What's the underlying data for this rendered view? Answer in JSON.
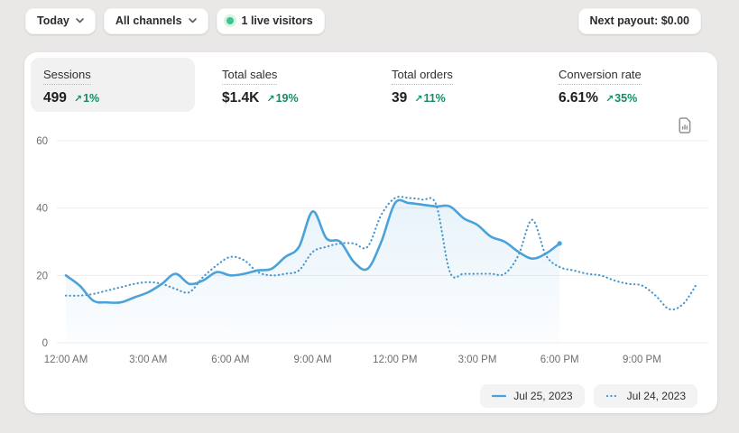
{
  "topbar": {
    "date_filter_label": "Today",
    "channel_filter_label": "All channels",
    "live_visitors_label": "1 live visitors",
    "next_payout_label": "Next payout: $0.00"
  },
  "metrics": [
    {
      "label": "Sessions",
      "value": "499",
      "delta": "1%",
      "selected": true
    },
    {
      "label": "Total sales",
      "value": "$1.4K",
      "delta": "19%",
      "selected": false
    },
    {
      "label": "Total orders",
      "value": "39",
      "delta": "11%",
      "selected": false
    },
    {
      "label": "Conversion rate",
      "value": "6.61%",
      "delta": "35%",
      "selected": false
    }
  ],
  "icons": {
    "trend_up": "↗",
    "chevron_down": "chevron-down",
    "live_dot": "green-pulse-dot",
    "export": "document-chart"
  },
  "colors": {
    "solid_line_blue": "#4aa2da",
    "dotted_line_blue": "#4596cd",
    "area_fill_blue": "#4aa2da",
    "success_green": "#178a66",
    "live_dot_green": "#3cc48e",
    "gridline": "#ebebeb",
    "axis_text": "#6e6e6e"
  },
  "chart_data": {
    "type": "line",
    "title": "Sessions",
    "xlabel": "",
    "ylabel": "",
    "ylim": [
      0,
      60
    ],
    "grid": "horizontal",
    "legend_position": "bottom-right",
    "y_ticks": [
      0,
      20,
      40,
      60
    ],
    "x_ticks": [
      "12:00 AM",
      "3:00 AM",
      "6:00 AM",
      "9:00 AM",
      "12:00 PM",
      "3:00 PM",
      "6:00 PM",
      "9:00 PM"
    ],
    "x_tick_hours": [
      0,
      3,
      6,
      9,
      12,
      15,
      18,
      21
    ],
    "series": [
      {
        "name": "Jul 25, 2023",
        "style": "solid",
        "color": "#4aa2da",
        "area_fill": true,
        "end_dot": true,
        "start_hour": 0,
        "hour_step": 0.5,
        "values": [
          20,
          17,
          12.5,
          12,
          12,
          13.5,
          15,
          17.5,
          20.5,
          17.5,
          18.5,
          21,
          20,
          20.5,
          21.5,
          22,
          25.5,
          28.5,
          39,
          31,
          30,
          24,
          22,
          30,
          41.5,
          41.5,
          41,
          40.5,
          40.5,
          37,
          35,
          31.5,
          30,
          27,
          25,
          26.5,
          29.5
        ]
      },
      {
        "name": "Jul 24, 2023",
        "style": "dotted",
        "color": "#4596cd",
        "area_fill": false,
        "end_dot": false,
        "start_hour": 0,
        "hour_step": 0.5,
        "values": [
          14,
          14,
          14.5,
          15.5,
          16.5,
          17.5,
          18,
          17.5,
          16,
          15,
          19.5,
          23,
          25.5,
          24.5,
          21,
          20,
          20.5,
          21.5,
          27,
          28.5,
          29.5,
          29.5,
          28.5,
          38,
          43,
          43,
          42.5,
          41,
          21,
          20.5,
          20.5,
          20.5,
          20.5,
          26,
          36.5,
          26,
          22.5,
          21.5,
          20.5,
          20,
          18.5,
          17.5,
          17,
          14,
          10,
          11.5,
          17.5
        ]
      }
    ]
  }
}
